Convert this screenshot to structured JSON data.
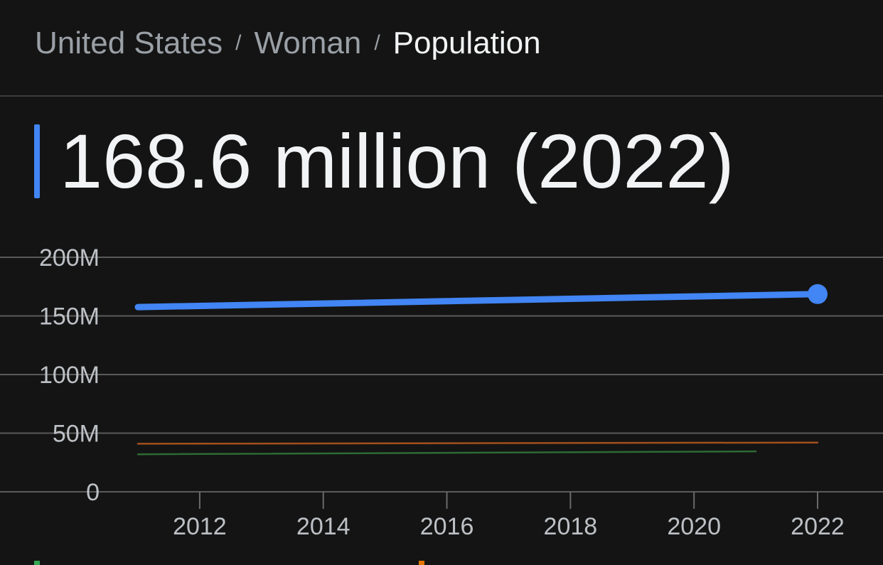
{
  "breadcrumb": {
    "items": [
      "United States",
      "Woman",
      "Population"
    ],
    "separator": "/"
  },
  "headline": {
    "value": "168.6 million (2022)",
    "accent_color": "#4285f4"
  },
  "chart_data": {
    "type": "line",
    "title": "",
    "xlabel": "",
    "ylabel": "",
    "xlim": [
      2011,
      2022
    ],
    "ylim": [
      0,
      200000000
    ],
    "grid": true,
    "x_ticks": [
      2012,
      2014,
      2016,
      2018,
      2020,
      2022
    ],
    "x_tick_labels": [
      "2012",
      "2014",
      "2016",
      "2018",
      "2020",
      "2022"
    ],
    "y_ticks": [
      0,
      50000000,
      100000000,
      150000000,
      200000000
    ],
    "y_tick_labels": [
      "0",
      "50M",
      "100M",
      "150M",
      "200M"
    ],
    "series": [
      {
        "color": "#4285f4",
        "highlight_last": true,
        "points": [
          [
            2011,
            157500000
          ],
          [
            2022,
            168600000
          ]
        ]
      },
      {
        "color": "#a3501c",
        "points": [
          [
            2011,
            41000000
          ],
          [
            2022,
            42000000
          ]
        ]
      },
      {
        "color": "#2d6b34",
        "points": [
          [
            2011,
            32000000
          ],
          [
            2021,
            34500000
          ]
        ]
      }
    ]
  },
  "legend": {
    "swatch_colors": [
      "#34a853",
      "#e37400"
    ]
  }
}
